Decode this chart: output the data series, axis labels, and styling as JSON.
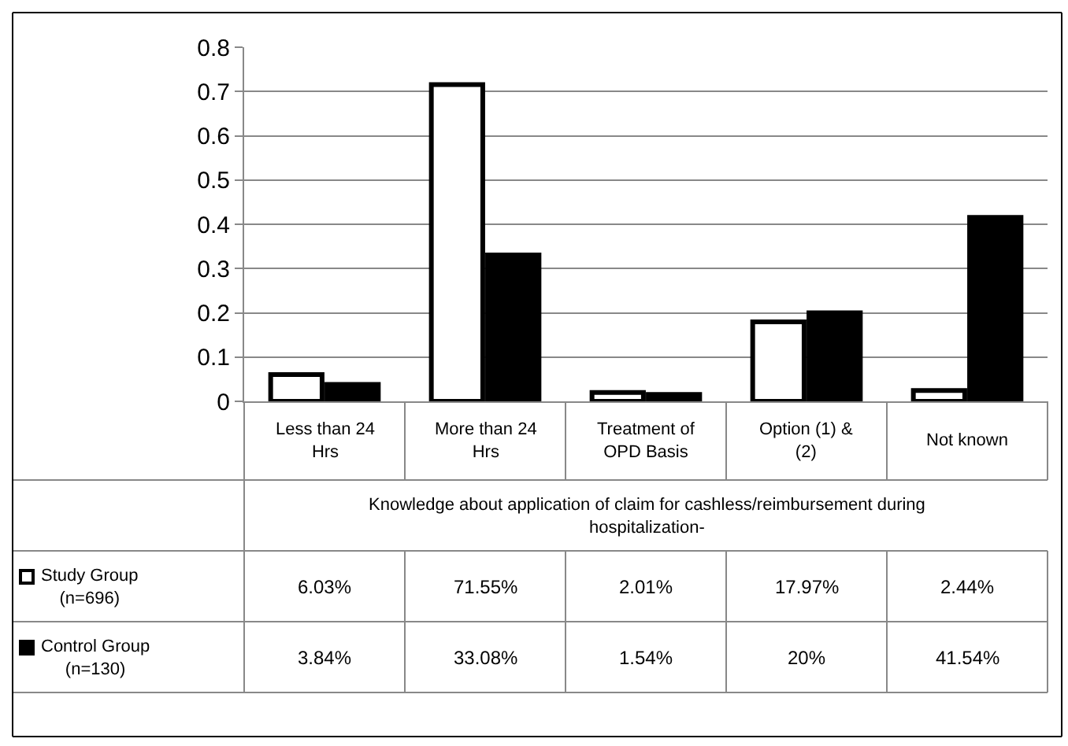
{
  "chart_data": {
    "type": "bar",
    "categories": [
      "Less than 24 Hrs",
      "More than 24 Hrs",
      "Treatment of OPD Basis",
      "Option (1) & (2)",
      "Not known"
    ],
    "xlabel": "Knowledge about application of claim for cashless/reimbursement during hospitalization-",
    "series": [
      {
        "name": "Study Group (n=696)",
        "color": "#ffffff",
        "values": [
          0.0603,
          0.7155,
          0.0201,
          0.1797,
          0.0244
        ],
        "value_labels": [
          "6.03%",
          "71.55%",
          "2.01%",
          "17.97%",
          "2.44%"
        ]
      },
      {
        "name": "Control Group (n=130)",
        "color": "#000000",
        "values": [
          0.0384,
          0.3308,
          0.0154,
          0.2,
          0.4154
        ],
        "value_labels": [
          "3.84%",
          "33.08%",
          "1.54%",
          "20%",
          "41.54%"
        ]
      }
    ],
    "ylim": [
      0,
      0.8
    ],
    "yticks": [
      0,
      0.1,
      0.2,
      0.3,
      0.4,
      0.5,
      0.6,
      0.7,
      0.8
    ],
    "grid": "y",
    "legend": "bottom left"
  }
}
